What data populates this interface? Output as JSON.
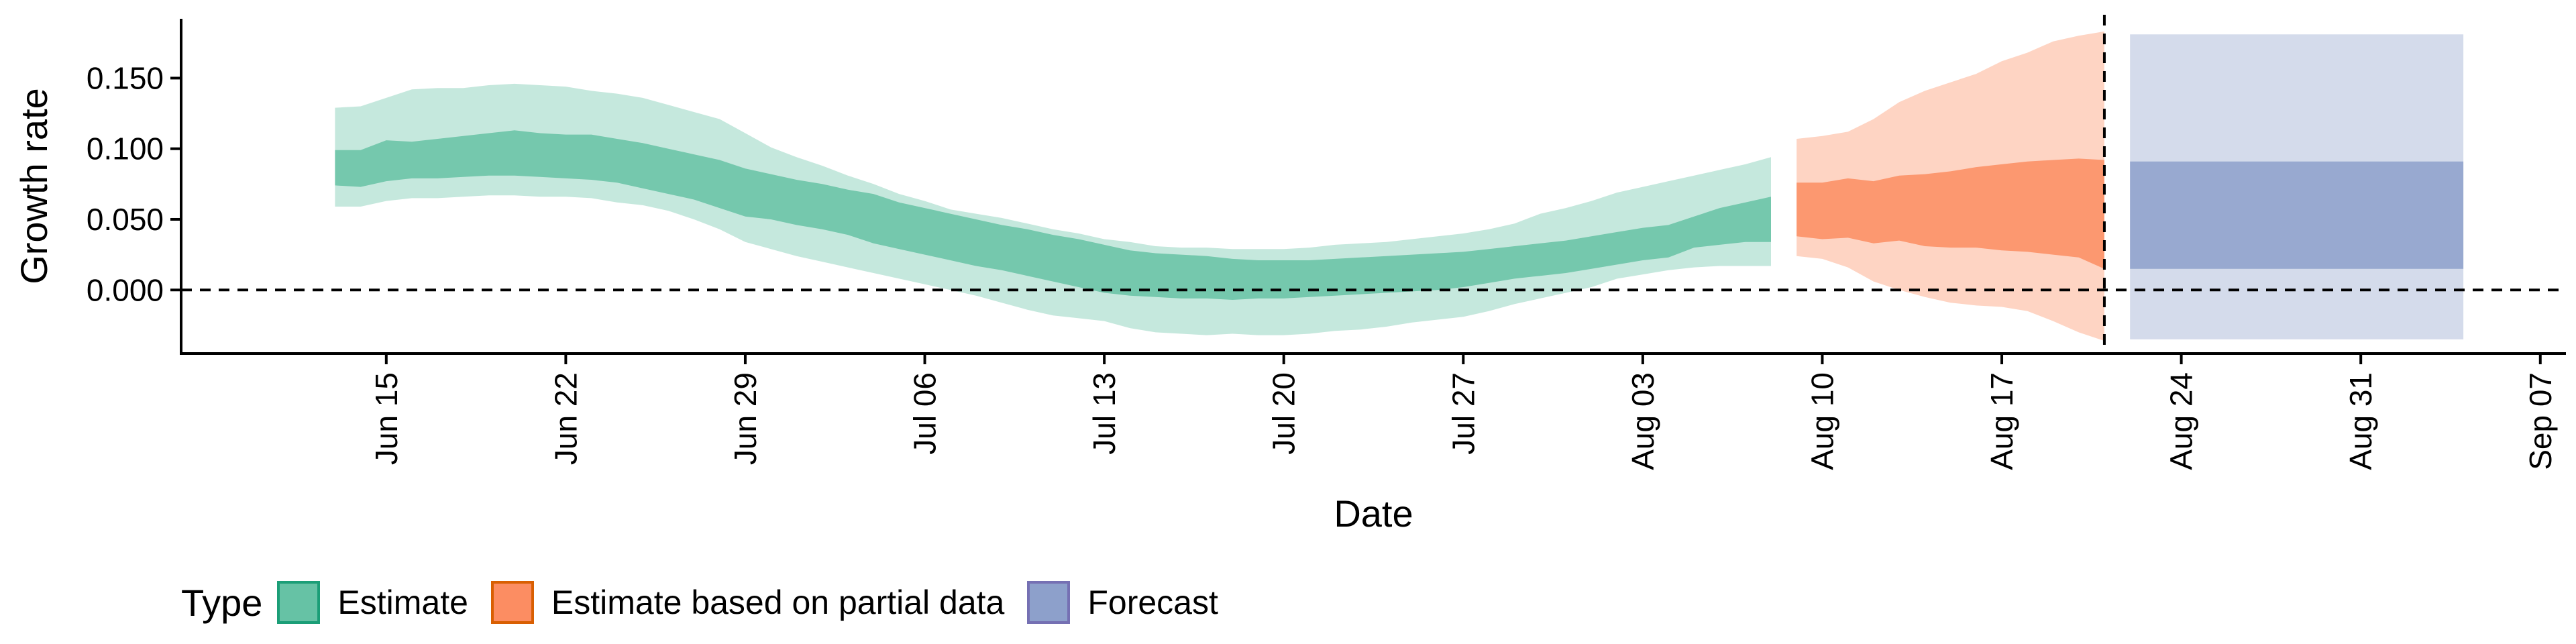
{
  "chart_data": {
    "type": "area",
    "xlabel": "Date",
    "ylabel": "Growth rate",
    "x_range": [
      "2020-06-07",
      "2020-09-08"
    ],
    "ylim": [
      -0.045,
      0.192
    ],
    "y_ticks": [
      {
        "value": 0.0,
        "label": "0.000"
      },
      {
        "value": 0.05,
        "label": "0.050"
      },
      {
        "value": 0.1,
        "label": "0.100"
      },
      {
        "value": 0.15,
        "label": "0.150"
      }
    ],
    "x_ticks": [
      {
        "date": "2020-06-15",
        "label": "Jun 15"
      },
      {
        "date": "2020-06-22",
        "label": "Jun 22"
      },
      {
        "date": "2020-06-29",
        "label": "Jun 29"
      },
      {
        "date": "2020-07-06",
        "label": "Jul 06"
      },
      {
        "date": "2020-07-13",
        "label": "Jul 13"
      },
      {
        "date": "2020-07-20",
        "label": "Jul 20"
      },
      {
        "date": "2020-07-27",
        "label": "Jul 27"
      },
      {
        "date": "2020-08-03",
        "label": "Aug 03"
      },
      {
        "date": "2020-08-10",
        "label": "Aug 10"
      },
      {
        "date": "2020-08-17",
        "label": "Aug 17"
      },
      {
        "date": "2020-08-24",
        "label": "Aug 24"
      },
      {
        "date": "2020-08-31",
        "label": "Aug 31"
      },
      {
        "date": "2020-09-07",
        "label": "Sep 07"
      }
    ],
    "reference_lines": {
      "horizontal_y": 0.0,
      "vertical_date": "2020-08-21"
    },
    "legend": {
      "title": "Type",
      "position": "bottom-left"
    },
    "grid": false,
    "series": [
      {
        "name": "Estimate",
        "fill_color": "#66c2a5",
        "stroke_color": "#1b9e77",
        "x": [
          "2020-06-13",
          "2020-06-14",
          "2020-06-15",
          "2020-06-16",
          "2020-06-17",
          "2020-06-18",
          "2020-06-19",
          "2020-06-20",
          "2020-06-21",
          "2020-06-22",
          "2020-06-23",
          "2020-06-24",
          "2020-06-25",
          "2020-06-26",
          "2020-06-27",
          "2020-06-28",
          "2020-06-29",
          "2020-06-30",
          "2020-07-01",
          "2020-07-02",
          "2020-07-03",
          "2020-07-04",
          "2020-07-05",
          "2020-07-06",
          "2020-07-07",
          "2020-07-08",
          "2020-07-09",
          "2020-07-10",
          "2020-07-11",
          "2020-07-12",
          "2020-07-13",
          "2020-07-14",
          "2020-07-15",
          "2020-07-16",
          "2020-07-17",
          "2020-07-18",
          "2020-07-19",
          "2020-07-20",
          "2020-07-21",
          "2020-07-22",
          "2020-07-23",
          "2020-07-24",
          "2020-07-25",
          "2020-07-26",
          "2020-07-27",
          "2020-07-28",
          "2020-07-29",
          "2020-07-30",
          "2020-07-31",
          "2020-08-01",
          "2020-08-02",
          "2020-08-03",
          "2020-08-04",
          "2020-08-05",
          "2020-08-06",
          "2020-08-07",
          "2020-08-08"
        ],
        "inner_upper": [
          0.099,
          0.099,
          0.106,
          0.105,
          0.107,
          0.109,
          0.111,
          0.113,
          0.111,
          0.11,
          0.11,
          0.107,
          0.104,
          0.1,
          0.096,
          0.092,
          0.086,
          0.082,
          0.078,
          0.075,
          0.071,
          0.068,
          0.062,
          0.058,
          0.054,
          0.05,
          0.046,
          0.043,
          0.039,
          0.036,
          0.032,
          0.028,
          0.026,
          0.025,
          0.024,
          0.022,
          0.021,
          0.021,
          0.021,
          0.022,
          0.023,
          0.024,
          0.025,
          0.026,
          0.027,
          0.029,
          0.031,
          0.033,
          0.035,
          0.038,
          0.041,
          0.044,
          0.046,
          0.052,
          0.058,
          0.062,
          0.066
        ],
        "inner_lower": [
          0.074,
          0.073,
          0.077,
          0.079,
          0.079,
          0.08,
          0.081,
          0.081,
          0.08,
          0.079,
          0.078,
          0.076,
          0.072,
          0.068,
          0.064,
          0.058,
          0.052,
          0.05,
          0.046,
          0.043,
          0.039,
          0.033,
          0.029,
          0.025,
          0.021,
          0.017,
          0.014,
          0.01,
          0.006,
          0.002,
          -0.002,
          -0.004,
          -0.005,
          -0.006,
          -0.006,
          -0.007,
          -0.006,
          -0.006,
          -0.005,
          -0.004,
          -0.003,
          -0.002,
          -0.001,
          0.0,
          0.002,
          0.005,
          0.008,
          0.01,
          0.012,
          0.015,
          0.018,
          0.021,
          0.023,
          0.03,
          0.032,
          0.034,
          0.034
        ],
        "outer_upper": [
          0.129,
          0.13,
          0.136,
          0.142,
          0.143,
          0.143,
          0.145,
          0.146,
          0.145,
          0.144,
          0.141,
          0.139,
          0.136,
          0.131,
          0.126,
          0.121,
          0.111,
          0.101,
          0.094,
          0.088,
          0.081,
          0.075,
          0.068,
          0.063,
          0.057,
          0.054,
          0.051,
          0.047,
          0.043,
          0.04,
          0.036,
          0.034,
          0.031,
          0.03,
          0.03,
          0.029,
          0.029,
          0.029,
          0.03,
          0.032,
          0.033,
          0.034,
          0.036,
          0.038,
          0.04,
          0.043,
          0.047,
          0.054,
          0.058,
          0.063,
          0.069,
          0.073,
          0.077,
          0.081,
          0.085,
          0.089,
          0.094
        ],
        "outer_lower": [
          0.059,
          0.059,
          0.063,
          0.065,
          0.065,
          0.066,
          0.067,
          0.067,
          0.066,
          0.066,
          0.065,
          0.062,
          0.06,
          0.056,
          0.05,
          0.043,
          0.034,
          0.029,
          0.024,
          0.02,
          0.016,
          0.012,
          0.008,
          0.004,
          0.0,
          -0.004,
          -0.009,
          -0.014,
          -0.018,
          -0.02,
          -0.022,
          -0.027,
          -0.03,
          -0.031,
          -0.032,
          -0.031,
          -0.032,
          -0.032,
          -0.031,
          -0.029,
          -0.028,
          -0.026,
          -0.023,
          -0.021,
          -0.019,
          -0.015,
          -0.01,
          -0.006,
          -0.002,
          0.002,
          0.008,
          0.011,
          0.014,
          0.016,
          0.017,
          0.017,
          0.017
        ]
      },
      {
        "name": "Estimate based on partial data",
        "fill_color": "#fc8d62",
        "stroke_color": "#d95f02",
        "x": [
          "2020-08-09",
          "2020-08-10",
          "2020-08-11",
          "2020-08-12",
          "2020-08-13",
          "2020-08-14",
          "2020-08-15",
          "2020-08-16",
          "2020-08-17",
          "2020-08-18",
          "2020-08-19",
          "2020-08-20",
          "2020-08-21"
        ],
        "inner_upper": [
          0.076,
          0.076,
          0.079,
          0.077,
          0.081,
          0.082,
          0.084,
          0.087,
          0.089,
          0.091,
          0.092,
          0.093,
          0.092
        ],
        "inner_lower": [
          0.038,
          0.036,
          0.037,
          0.033,
          0.035,
          0.031,
          0.03,
          0.03,
          0.028,
          0.027,
          0.025,
          0.023,
          0.015
        ],
        "outer_upper": [
          0.107,
          0.109,
          0.112,
          0.121,
          0.133,
          0.141,
          0.147,
          0.153,
          0.162,
          0.168,
          0.176,
          0.18,
          0.183
        ],
        "outer_lower": [
          0.024,
          0.022,
          0.016,
          0.006,
          0.0,
          -0.005,
          -0.009,
          -0.011,
          -0.012,
          -0.015,
          -0.022,
          -0.03,
          -0.036
        ]
      },
      {
        "name": "Forecast",
        "fill_color": "#8da0cb",
        "stroke_color": "#7570b3",
        "x": [
          "2020-08-22",
          "2020-09-04"
        ],
        "inner_upper": [
          0.091,
          0.091
        ],
        "inner_lower": [
          0.015,
          0.015
        ],
        "outer_upper": [
          0.181,
          0.181
        ],
        "outer_lower": [
          -0.035,
          -0.035
        ]
      }
    ]
  }
}
